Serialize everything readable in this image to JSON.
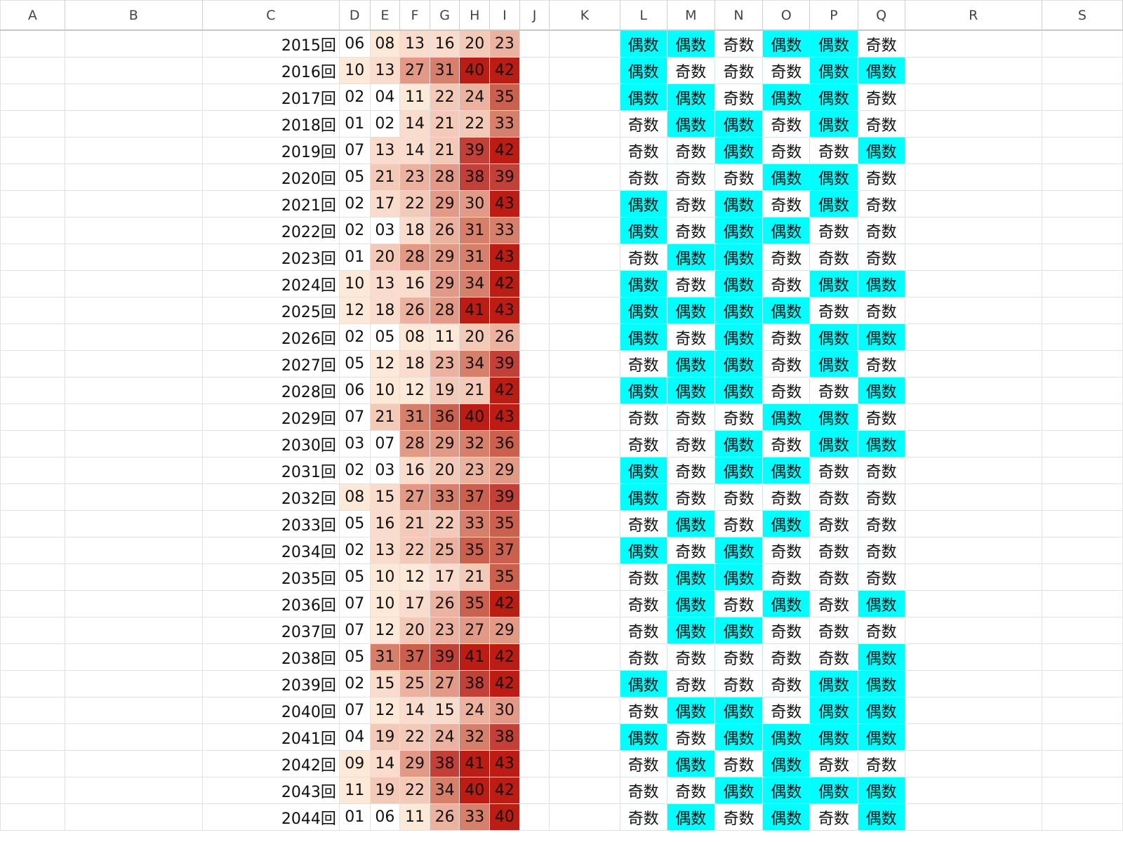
{
  "sheet": {
    "columns": [
      "A",
      "B",
      "C",
      "D",
      "E",
      "F",
      "G",
      "H",
      "I",
      "J",
      "K",
      "L",
      "M",
      "N",
      "O",
      "P",
      "Q",
      "R",
      "S"
    ],
    "parity_labels": {
      "even": "偶数",
      "odd": "奇数"
    },
    "colors": {
      "even_highlight": "#00ffff",
      "heat_scale": [
        "#ffffff",
        "#fde9d8",
        "#f9dccb",
        "#f3c9b8",
        "#ebb2a0",
        "#e29a87",
        "#d67f6b",
        "#cc604f",
        "#c24037",
        "#bd1c14"
      ]
    },
    "rows": [
      {
        "round": "2015回",
        "nums": [
          "06",
          "08",
          "13",
          "16",
          "20",
          "23"
        ],
        "parity": [
          "偶数",
          "偶数",
          "奇数",
          "偶数",
          "偶数",
          "奇数"
        ]
      },
      {
        "round": "2016回",
        "nums": [
          "10",
          "13",
          "27",
          "31",
          "40",
          "42"
        ],
        "parity": [
          "偶数",
          "奇数",
          "奇数",
          "奇数",
          "偶数",
          "偶数"
        ]
      },
      {
        "round": "2017回",
        "nums": [
          "02",
          "04",
          "11",
          "22",
          "24",
          "35"
        ],
        "parity": [
          "偶数",
          "偶数",
          "奇数",
          "偶数",
          "偶数",
          "奇数"
        ]
      },
      {
        "round": "2018回",
        "nums": [
          "01",
          "02",
          "14",
          "21",
          "22",
          "33"
        ],
        "parity": [
          "奇数",
          "偶数",
          "偶数",
          "奇数",
          "偶数",
          "奇数"
        ]
      },
      {
        "round": "2019回",
        "nums": [
          "07",
          "13",
          "14",
          "21",
          "39",
          "42"
        ],
        "parity": [
          "奇数",
          "奇数",
          "偶数",
          "奇数",
          "奇数",
          "偶数"
        ]
      },
      {
        "round": "2020回",
        "nums": [
          "05",
          "21",
          "23",
          "28",
          "38",
          "39"
        ],
        "parity": [
          "奇数",
          "奇数",
          "奇数",
          "偶数",
          "偶数",
          "奇数"
        ]
      },
      {
        "round": "2021回",
        "nums": [
          "02",
          "17",
          "22",
          "29",
          "30",
          "43"
        ],
        "parity": [
          "偶数",
          "奇数",
          "偶数",
          "奇数",
          "偶数",
          "奇数"
        ]
      },
      {
        "round": "2022回",
        "nums": [
          "02",
          "03",
          "18",
          "26",
          "31",
          "33"
        ],
        "parity": [
          "偶数",
          "奇数",
          "偶数",
          "偶数",
          "奇数",
          "奇数"
        ]
      },
      {
        "round": "2023回",
        "nums": [
          "01",
          "20",
          "28",
          "29",
          "31",
          "43"
        ],
        "parity": [
          "奇数",
          "偶数",
          "偶数",
          "奇数",
          "奇数",
          "奇数"
        ]
      },
      {
        "round": "2024回",
        "nums": [
          "10",
          "13",
          "16",
          "29",
          "34",
          "42"
        ],
        "parity": [
          "偶数",
          "奇数",
          "偶数",
          "奇数",
          "偶数",
          "偶数"
        ]
      },
      {
        "round": "2025回",
        "nums": [
          "12",
          "18",
          "26",
          "28",
          "41",
          "43"
        ],
        "parity": [
          "偶数",
          "偶数",
          "偶数",
          "偶数",
          "奇数",
          "奇数"
        ]
      },
      {
        "round": "2026回",
        "nums": [
          "02",
          "05",
          "08",
          "11",
          "20",
          "26"
        ],
        "parity": [
          "偶数",
          "奇数",
          "偶数",
          "奇数",
          "偶数",
          "偶数"
        ]
      },
      {
        "round": "2027回",
        "nums": [
          "05",
          "12",
          "18",
          "23",
          "34",
          "39"
        ],
        "parity": [
          "奇数",
          "偶数",
          "偶数",
          "奇数",
          "偶数",
          "奇数"
        ]
      },
      {
        "round": "2028回",
        "nums": [
          "06",
          "10",
          "12",
          "19",
          "21",
          "42"
        ],
        "parity": [
          "偶数",
          "偶数",
          "偶数",
          "奇数",
          "奇数",
          "偶数"
        ]
      },
      {
        "round": "2029回",
        "nums": [
          "07",
          "21",
          "31",
          "36",
          "40",
          "43"
        ],
        "parity": [
          "奇数",
          "奇数",
          "奇数",
          "偶数",
          "偶数",
          "奇数"
        ]
      },
      {
        "round": "2030回",
        "nums": [
          "03",
          "07",
          "28",
          "29",
          "32",
          "36"
        ],
        "parity": [
          "奇数",
          "奇数",
          "偶数",
          "奇数",
          "偶数",
          "偶数"
        ]
      },
      {
        "round": "2031回",
        "nums": [
          "02",
          "03",
          "16",
          "20",
          "23",
          "29"
        ],
        "parity": [
          "偶数",
          "奇数",
          "偶数",
          "偶数",
          "奇数",
          "奇数"
        ]
      },
      {
        "round": "2032回",
        "nums": [
          "08",
          "15",
          "27",
          "33",
          "37",
          "39"
        ],
        "parity": [
          "偶数",
          "奇数",
          "奇数",
          "奇数",
          "奇数",
          "奇数"
        ]
      },
      {
        "round": "2033回",
        "nums": [
          "05",
          "16",
          "21",
          "22",
          "33",
          "35"
        ],
        "parity": [
          "奇数",
          "偶数",
          "奇数",
          "偶数",
          "奇数",
          "奇数"
        ]
      },
      {
        "round": "2034回",
        "nums": [
          "02",
          "13",
          "22",
          "25",
          "35",
          "37"
        ],
        "parity": [
          "偶数",
          "奇数",
          "偶数",
          "奇数",
          "奇数",
          "奇数"
        ]
      },
      {
        "round": "2035回",
        "nums": [
          "05",
          "10",
          "12",
          "17",
          "21",
          "35"
        ],
        "parity": [
          "奇数",
          "偶数",
          "偶数",
          "奇数",
          "奇数",
          "奇数"
        ]
      },
      {
        "round": "2036回",
        "nums": [
          "07",
          "10",
          "17",
          "26",
          "35",
          "42"
        ],
        "parity": [
          "奇数",
          "偶数",
          "奇数",
          "偶数",
          "奇数",
          "偶数"
        ]
      },
      {
        "round": "2037回",
        "nums": [
          "07",
          "12",
          "20",
          "23",
          "27",
          "29"
        ],
        "parity": [
          "奇数",
          "偶数",
          "偶数",
          "奇数",
          "奇数",
          "奇数"
        ]
      },
      {
        "round": "2038回",
        "nums": [
          "05",
          "31",
          "37",
          "39",
          "41",
          "42"
        ],
        "parity": [
          "奇数",
          "奇数",
          "奇数",
          "奇数",
          "奇数",
          "偶数"
        ]
      },
      {
        "round": "2039回",
        "nums": [
          "02",
          "15",
          "25",
          "27",
          "38",
          "42"
        ],
        "parity": [
          "偶数",
          "奇数",
          "奇数",
          "奇数",
          "偶数",
          "偶数"
        ]
      },
      {
        "round": "2040回",
        "nums": [
          "07",
          "12",
          "14",
          "15",
          "24",
          "30"
        ],
        "parity": [
          "奇数",
          "偶数",
          "偶数",
          "奇数",
          "偶数",
          "偶数"
        ]
      },
      {
        "round": "2041回",
        "nums": [
          "04",
          "19",
          "22",
          "24",
          "32",
          "38"
        ],
        "parity": [
          "偶数",
          "奇数",
          "偶数",
          "偶数",
          "偶数",
          "偶数"
        ]
      },
      {
        "round": "2042回",
        "nums": [
          "09",
          "14",
          "29",
          "38",
          "41",
          "43"
        ],
        "parity": [
          "奇数",
          "偶数",
          "奇数",
          "偶数",
          "奇数",
          "奇数"
        ]
      },
      {
        "round": "2043回",
        "nums": [
          "11",
          "19",
          "22",
          "34",
          "40",
          "42"
        ],
        "parity": [
          "奇数",
          "奇数",
          "偶数",
          "偶数",
          "偶数",
          "偶数"
        ]
      },
      {
        "round": "2044回",
        "nums": [
          "01",
          "06",
          "11",
          "26",
          "33",
          "40"
        ],
        "parity": [
          "奇数",
          "偶数",
          "奇数",
          "偶数",
          "奇数",
          "偶数"
        ]
      }
    ]
  }
}
